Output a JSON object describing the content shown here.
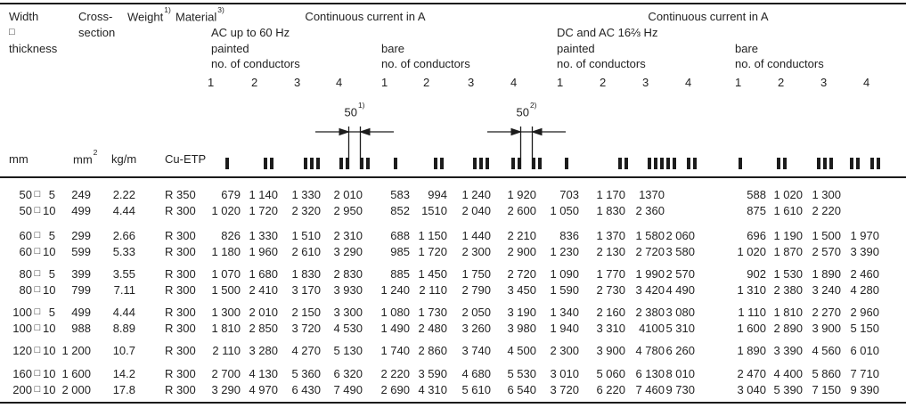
{
  "header": {
    "size": {
      "line1": "Width",
      "line2": "□",
      "line3": "thickness"
    },
    "cross": {
      "line1": "Cross-",
      "line2": "section"
    },
    "weight": {
      "text": "Weight",
      "sup": "1)"
    },
    "material": {
      "text": "Material",
      "sup": "3)"
    },
    "conductor_cols": [
      "1",
      "2",
      "3",
      "4"
    ],
    "ac": {
      "title": "Continuous current in A",
      "subtitle": "AC up to 60 Hz",
      "painted": "painted",
      "bare": "bare",
      "conductors": "no. of conductors"
    },
    "dc": {
      "title": "Continuous current in A",
      "subtitle": "DC and AC 16⅔ Hz",
      "painted": "painted",
      "bare": "bare",
      "conductors": "no. of conductors"
    }
  },
  "diagrams": {
    "left": {
      "text": "50",
      "sup": "1)"
    },
    "right": {
      "text": "50",
      "sup": "2)"
    }
  },
  "units": {
    "mm": "mm",
    "mm2": {
      "text": "mm",
      "sup": "2"
    },
    "kgm": "kg/m",
    "material": "Cu-ETP"
  },
  "table": {
    "square": "□",
    "rows": [
      {
        "w": "50",
        "t": "5",
        "mm2": "249",
        "kgm": "2.22",
        "mat": "R 350",
        "ac_painted": [
          "679",
          "1 140",
          "1 330",
          "2 010"
        ],
        "ac_bare": [
          "583",
          "994",
          "1 240",
          "1 920"
        ],
        "dc_painted": [
          "703",
          "1 170",
          "1370",
          ""
        ],
        "dc_bare": [
          "588",
          "1 020",
          "1 300",
          ""
        ]
      },
      {
        "w": "50",
        "t": "10",
        "mm2": "499",
        "kgm": "4.44",
        "mat": "R 300",
        "ac_painted": [
          "1 020",
          "1 720",
          "2 320",
          "2 950"
        ],
        "ac_bare": [
          "852",
          "1510",
          "2 040",
          "2 600"
        ],
        "dc_painted": [
          "1 050",
          "1 830",
          "2 360",
          ""
        ],
        "dc_bare": [
          "875",
          "1 610",
          "2 220",
          ""
        ]
      },
      {
        "w": "60",
        "t": "5",
        "mm2": "299",
        "kgm": "2.66",
        "mat": "R 300",
        "ac_painted": [
          "826",
          "1 330",
          "1 510",
          "2 310"
        ],
        "ac_bare": [
          "688",
          "1 150",
          "1 440",
          "2 210"
        ],
        "dc_painted": [
          "836",
          "1 370",
          "1 580",
          "2 060"
        ],
        "dc_bare": [
          "696",
          "1 190",
          "1 500",
          "1 970"
        ]
      },
      {
        "w": "60",
        "t": "10",
        "mm2": "599",
        "kgm": "5.33",
        "mat": "R 300",
        "ac_painted": [
          "1 180",
          "1 960",
          "2 610",
          "3 290"
        ],
        "ac_bare": [
          "985",
          "1 720",
          "2 300",
          "2 900"
        ],
        "dc_painted": [
          "1 230",
          "2 130",
          "2 720",
          "3 580"
        ],
        "dc_bare": [
          "1 020",
          "1 870",
          "2 570",
          "3 390"
        ]
      },
      {
        "w": "80",
        "t": "5",
        "mm2": "399",
        "kgm": "3.55",
        "mat": "R 300",
        "ac_painted": [
          "1 070",
          "1 680",
          "1 830",
          "2 830"
        ],
        "ac_bare": [
          "885",
          "1 450",
          "1 750",
          "2 720"
        ],
        "dc_painted": [
          "1 090",
          "1 770",
          "1 990",
          "2 570"
        ],
        "dc_bare": [
          "902",
          "1 530",
          "1 890",
          "2 460"
        ]
      },
      {
        "w": "80",
        "t": "10",
        "mm2": "799",
        "kgm": "7.11",
        "mat": "R 300",
        "ac_painted": [
          "1 500",
          "2 410",
          "3 170",
          "3 930"
        ],
        "ac_bare": [
          "1 240",
          "2 110",
          "2 790",
          "3 450"
        ],
        "dc_painted": [
          "1 590",
          "2 730",
          "3 420",
          "4 490"
        ],
        "dc_bare": [
          "1 310",
          "2 380",
          "3 240",
          "4 280"
        ]
      },
      {
        "w": "100",
        "t": "5",
        "mm2": "499",
        "kgm": "4.44",
        "mat": "R 300",
        "ac_painted": [
          "1 300",
          "2 010",
          "2 150",
          "3 300"
        ],
        "ac_bare": [
          "1 080",
          "1 730",
          "2 050",
          "3 190"
        ],
        "dc_painted": [
          "1 340",
          "2 160",
          "2 380",
          "3 080"
        ],
        "dc_bare": [
          "1 110",
          "1 810",
          "2 270",
          "2 960"
        ]
      },
      {
        "w": "100",
        "t": "10",
        "mm2": "988",
        "kgm": "8.89",
        "mat": "R 300",
        "ac_painted": [
          "1 810",
          "2 850",
          "3 720",
          "4 530"
        ],
        "ac_bare": [
          "1 490",
          "2 480",
          "3 260",
          "3 980"
        ],
        "dc_painted": [
          "1 940",
          "3 310",
          "4100",
          "5 310"
        ],
        "dc_bare": [
          "1 600",
          "2 890",
          "3 900",
          "5 150"
        ]
      },
      {
        "w": "120",
        "t": "10",
        "mm2": "1 200",
        "kgm": "10.7",
        "mat": "R 300",
        "ac_painted": [
          "2 110",
          "3 280",
          "4 270",
          "5 130"
        ],
        "ac_bare": [
          "1 740",
          "2 860",
          "3 740",
          "4 500"
        ],
        "dc_painted": [
          "2 300",
          "3 900",
          "4 780",
          "6 260"
        ],
        "dc_bare": [
          "1 890",
          "3 390",
          "4 560",
          "6 010"
        ]
      },
      {
        "w": "160",
        "t": "10",
        "mm2": "1 600",
        "kgm": "14.2",
        "mat": "R 300",
        "ac_painted": [
          "2 700",
          "4 130",
          "5 360",
          "6 320"
        ],
        "ac_bare": [
          "2 220",
          "3 590",
          "4 680",
          "5 530"
        ],
        "dc_painted": [
          "3 010",
          "5 060",
          "6 130",
          "8 010"
        ],
        "dc_bare": [
          "2 470",
          "4 400",
          "5 860",
          "7 710"
        ]
      },
      {
        "w": "200",
        "t": "10",
        "mm2": "2 000",
        "kgm": "17.8",
        "mat": "R 300",
        "ac_painted": [
          "3 290",
          "4 970",
          "6 430",
          "7 490"
        ],
        "ac_bare": [
          "2 690",
          "4 310",
          "5 610",
          "6 540"
        ],
        "dc_painted": [
          "3 720",
          "6 220",
          "7 460",
          "9 730"
        ],
        "dc_bare": [
          "3 040",
          "5 390",
          "7 150",
          "9 390"
        ]
      }
    ]
  }
}
